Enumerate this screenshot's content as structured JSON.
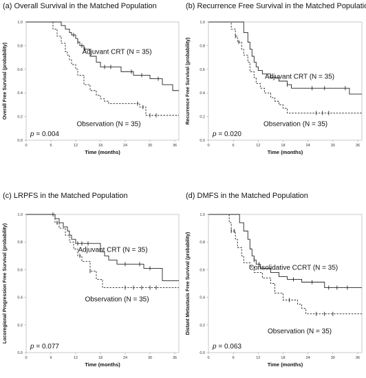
{
  "chart_data": [
    {
      "type": "line",
      "title": "(a) Overall Survival in the Matched Population",
      "xlabel": "Time (months)",
      "ylabel": "Overall Free Survival (probability)",
      "xlim": [
        0,
        37
      ],
      "ylim": [
        0,
        1
      ],
      "xticks": [
        "0",
        "6",
        "12",
        "18",
        "24",
        "30",
        "36"
      ],
      "yticks": [
        "0.0",
        "0.2",
        "0.4",
        "0.6",
        "0.8",
        "1.0"
      ],
      "p_prefix": "p",
      "p_value": " = 0.004",
      "grid": false,
      "series": [
        {
          "name": "Adjuvant CRT (N = 35)",
          "style": "solid",
          "x": [
            0,
            7.5,
            8.5,
            9.5,
            10.5,
            11,
            12,
            12.5,
            13,
            14,
            15.5,
            17,
            18,
            23,
            26,
            30,
            33,
            35.5,
            37
          ],
          "y": [
            1.0,
            1.0,
            0.97,
            0.94,
            0.91,
            0.89,
            0.86,
            0.83,
            0.8,
            0.77,
            0.71,
            0.66,
            0.62,
            0.58,
            0.55,
            0.52,
            0.47,
            0.42,
            0.42
          ],
          "censor_x": [
            11.5,
            12.5,
            13.5,
            14.2,
            19,
            20.5,
            25.5,
            28,
            32
          ],
          "label_pos": [
            22,
            0.73
          ]
        },
        {
          "name": "Observation (N = 35)",
          "style": "dashed",
          "x": [
            0,
            6,
            6.5,
            7.5,
            8.5,
            9.5,
            10,
            10.5,
            11,
            12,
            12.5,
            14,
            15.5,
            17,
            18,
            19,
            20,
            27.5,
            29,
            37
          ],
          "y": [
            1.0,
            1.0,
            0.94,
            0.88,
            0.82,
            0.75,
            0.72,
            0.68,
            0.64,
            0.6,
            0.55,
            0.47,
            0.42,
            0.38,
            0.35,
            0.33,
            0.31,
            0.28,
            0.21,
            0.21
          ],
          "censor_x": [
            27,
            28.3,
            30,
            31.5
          ],
          "label_pos": [
            20,
            0.12
          ]
        }
      ]
    },
    {
      "type": "line",
      "title": "(b) Recurrence Free Survival in the Matched Population",
      "xlabel": "Time (months)",
      "ylabel": "Recurrence Free Survival (probability)",
      "xlim": [
        0,
        37
      ],
      "ylim": [
        0,
        1
      ],
      "xticks": [
        "0",
        "6",
        "12",
        "18",
        "24",
        "30",
        "36"
      ],
      "yticks": [
        "0.0",
        "0.2",
        "0.4",
        "0.6",
        "0.8",
        "1.0"
      ],
      "p_prefix": "p",
      "p_value": " = 0.020",
      "grid": false,
      "series": [
        {
          "name": "Adjuvant CRT (N = 35)",
          "style": "solid",
          "x": [
            0,
            7.5,
            8.5,
            9.5,
            10,
            10.5,
            11,
            11.5,
            12,
            13,
            15,
            17,
            19,
            20,
            34,
            37
          ],
          "y": [
            1.0,
            1.0,
            0.91,
            0.83,
            0.77,
            0.71,
            0.66,
            0.62,
            0.59,
            0.56,
            0.53,
            0.5,
            0.47,
            0.44,
            0.39,
            0.39
          ],
          "censor_x": [
            19,
            25,
            28,
            33
          ],
          "label_pos": [
            22,
            0.52
          ]
        },
        {
          "name": "Observation (N = 35)",
          "style": "dashed",
          "x": [
            0,
            4.5,
            5.5,
            6.5,
            7,
            8,
            8.5,
            9.5,
            10,
            11,
            11.5,
            12.5,
            13.5,
            15,
            16,
            17,
            18,
            19,
            37
          ],
          "y": [
            1.0,
            1.0,
            0.94,
            0.88,
            0.83,
            0.77,
            0.72,
            0.66,
            0.58,
            0.53,
            0.48,
            0.44,
            0.4,
            0.36,
            0.33,
            0.3,
            0.27,
            0.23,
            0.23
          ],
          "censor_x": [
            6.5,
            7.3,
            26,
            27.5,
            29
          ],
          "label_pos": [
            21,
            0.12
          ]
        }
      ]
    },
    {
      "type": "line",
      "title": "(c) LRPFS in the Matched Population",
      "xlabel": "Time (months)",
      "ylabel": "Locoregional Progression Free Survival (probability)",
      "xlim": [
        0,
        37
      ],
      "ylim": [
        0,
        1
      ],
      "xticks": [
        "0",
        "6",
        "12",
        "18",
        "24",
        "30",
        "36"
      ],
      "yticks": [
        "0.0",
        "0.2",
        "0.4",
        "0.6",
        "0.8",
        "1.0"
      ],
      "p_prefix": "p",
      "p_value": " = 0.077",
      "grid": false,
      "series": [
        {
          "name": "Adjuvant CRT (N = 35)",
          "style": "solid",
          "x": [
            0,
            6,
            7,
            8,
            9,
            10,
            10.5,
            11,
            12,
            17,
            18,
            19,
            20,
            22,
            26,
            28.5,
            33,
            37
          ],
          "y": [
            1.0,
            1.0,
            0.97,
            0.94,
            0.91,
            0.88,
            0.85,
            0.82,
            0.79,
            0.79,
            0.73,
            0.7,
            0.67,
            0.64,
            0.64,
            0.61,
            0.52,
            0.52
          ],
          "censor_x": [
            12.5,
            13.5,
            15,
            24,
            27.5,
            30
          ],
          "label_pos": [
            21,
            0.73
          ]
        },
        {
          "name": "Observation (N = 35)",
          "style": "dashed",
          "x": [
            0,
            6,
            7,
            8,
            9.5,
            10.5,
            11.5,
            12.5,
            13.5,
            15.5,
            17,
            18.5,
            37
          ],
          "y": [
            1.0,
            1.0,
            0.94,
            0.9,
            0.85,
            0.8,
            0.75,
            0.7,
            0.66,
            0.59,
            0.53,
            0.47,
            0.47
          ],
          "censor_x": [
            6.5,
            7.5,
            13,
            15.5,
            24,
            26,
            28,
            30,
            31.5
          ],
          "label_pos": [
            22,
            0.37
          ]
        }
      ]
    },
    {
      "type": "line",
      "title": "(d) DMFS in the Matched Population",
      "xlabel": "Time (months)",
      "ylabel": "Distant Metastasis Free Survival (probability)",
      "xlim": [
        0,
        37
      ],
      "ylim": [
        0,
        1
      ],
      "xticks": [
        "0",
        "6",
        "12",
        "18",
        "24",
        "30",
        "36"
      ],
      "yticks": [
        "0.0",
        "0.2",
        "0.4",
        "0.6",
        "0.8",
        "1.0"
      ],
      "p_prefix": "p",
      "p_value": " = 0.063",
      "grid": false,
      "series": [
        {
          "name": "Consolidative CCRT (N = 35)",
          "style": "solid",
          "x": [
            0,
            6.5,
            7.5,
            8.5,
            9.5,
            10,
            10.5,
            11,
            11.5,
            12.5,
            15,
            17,
            19,
            20,
            22.5,
            26,
            28,
            37
          ],
          "y": [
            1.0,
            1.0,
            0.94,
            0.88,
            0.82,
            0.75,
            0.7,
            0.67,
            0.64,
            0.61,
            0.58,
            0.55,
            0.53,
            0.53,
            0.51,
            0.51,
            0.47,
            0.47
          ],
          "censor_x": [
            11,
            12.2,
            20.5,
            25,
            29,
            31,
            33.5
          ],
          "label_pos": [
            20.5,
            0.6
          ]
        },
        {
          "name": "Observation (N = 35)",
          "style": "dashed",
          "x": [
            0,
            4,
            5,
            5.5,
            6.5,
            7,
            8,
            8.5,
            10,
            11,
            13,
            15,
            16,
            18,
            21.5,
            22.5,
            23.5,
            37
          ],
          "y": [
            1.0,
            1.0,
            0.94,
            0.88,
            0.82,
            0.76,
            0.7,
            0.65,
            0.62,
            0.58,
            0.54,
            0.5,
            0.43,
            0.38,
            0.35,
            0.32,
            0.28,
            0.28
          ],
          "censor_x": [
            5.5,
            6.2,
            19.5,
            26,
            28,
            30
          ],
          "label_pos": [
            22,
            0.14
          ]
        }
      ]
    }
  ]
}
